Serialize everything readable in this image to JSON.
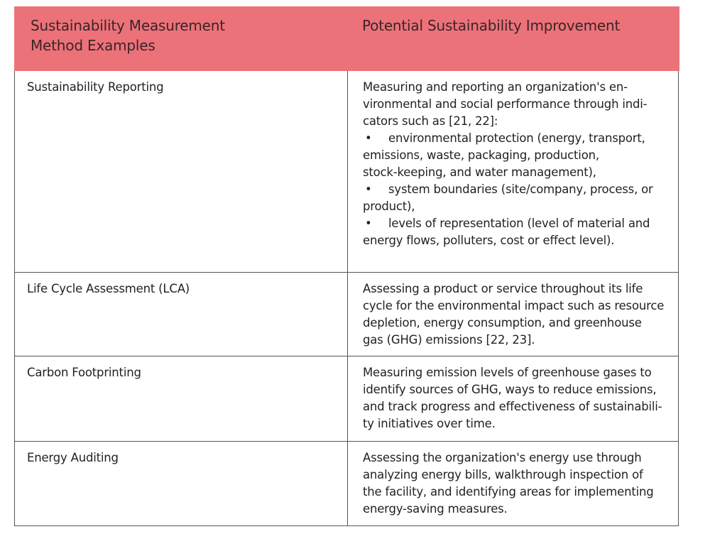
{
  "header": {
    "col1": [
      "Sustainability Measurement",
      "Method Examples"
    ],
    "col2": "Potential Sustainability Improvement"
  },
  "header_color": "#ec727a",
  "rows": [
    {
      "method": "Sustainability Reporting",
      "lines": [
        {
          "t": "Measuring and reporting an organization's en-"
        },
        {
          "t": "vironmental and social performance through indi-"
        },
        {
          "t": "cators such as [21, 22]:"
        },
        {
          "b": "•",
          "t": "environmental protection (energy, transport,"
        },
        {
          "t": "emissions, waste, packaging, production,"
        },
        {
          "t": "stock-keeping, and water management),"
        },
        {
          "b": "•",
          "t": "system boundaries (site/company, process, or"
        },
        {
          "t": "product),"
        },
        {
          "b": "•",
          "t": "levels of representation (level of material and"
        },
        {
          "t": "energy flows, polluters, cost or effect level)."
        }
      ]
    },
    {
      "method": "Life Cycle Assessment (LCA)",
      "lines": [
        {
          "t": "Assessing a product or service throughout its life"
        },
        {
          "t": "cycle for the environmental impact such as resource"
        },
        {
          "t": "depletion, energy consumption, and greenhouse"
        },
        {
          "t": "gas (GHG) emissions [22, 23]."
        }
      ]
    },
    {
      "method": "Carbon Footprinting",
      "lines": [
        {
          "t": "Measuring emission levels of greenhouse gases to"
        },
        {
          "t": "identify sources of GHG, ways to reduce emissions,"
        },
        {
          "t": "and track progress and effectiveness of sustainabili-"
        },
        {
          "t": "ty initiatives over time."
        }
      ]
    },
    {
      "method": "Energy Auditing",
      "lines": [
        {
          "t": "Assessing the organization's energy use through"
        },
        {
          "t": "analyzing energy bills, walkthrough inspection of"
        },
        {
          "t": "the facility, and identifying areas for implementing"
        },
        {
          "t": "energy-saving measures."
        }
      ]
    }
  ]
}
